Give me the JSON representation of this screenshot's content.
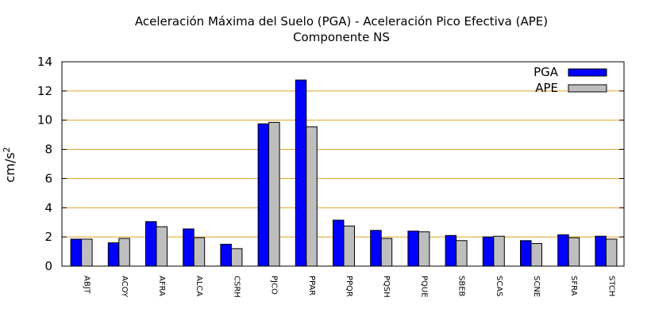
{
  "chart_data": {
    "type": "bar",
    "title": "Aceleración Máxima del Suelo (PGA) -  Aceleración Pico Efectiva (APE)",
    "subtitle": "Componente NS",
    "xlabel": "",
    "ylabel": "cm/s",
    "ylabel_superscript": "2",
    "ylim": [
      0,
      14
    ],
    "yticks": [
      0,
      2,
      4,
      6,
      8,
      10,
      12,
      14
    ],
    "grid": true,
    "legend_position": "top-right",
    "categories": [
      "ABJT",
      "ACOY",
      "AFRA",
      "ALCA",
      "CSRH",
      "PJCO",
      "PPAR",
      "PPQR",
      "PQSH",
      "PQUE",
      "SBEB",
      "SCAS",
      "SCNE",
      "SFRA",
      "STCH"
    ],
    "series": [
      {
        "name": "PGA",
        "color": "#0000ff",
        "values": [
          1.85,
          1.6,
          3.05,
          2.55,
          1.5,
          9.75,
          12.75,
          3.15,
          2.45,
          2.4,
          2.1,
          2.0,
          1.75,
          2.15,
          2.05
        ]
      },
      {
        "name": "APE",
        "color": "#bebebe",
        "values": [
          1.85,
          1.9,
          2.7,
          1.95,
          1.2,
          9.85,
          9.55,
          2.75,
          1.9,
          2.35,
          1.75,
          2.05,
          1.55,
          1.95,
          1.85
        ]
      }
    ],
    "grid_color": "#e0a020"
  }
}
